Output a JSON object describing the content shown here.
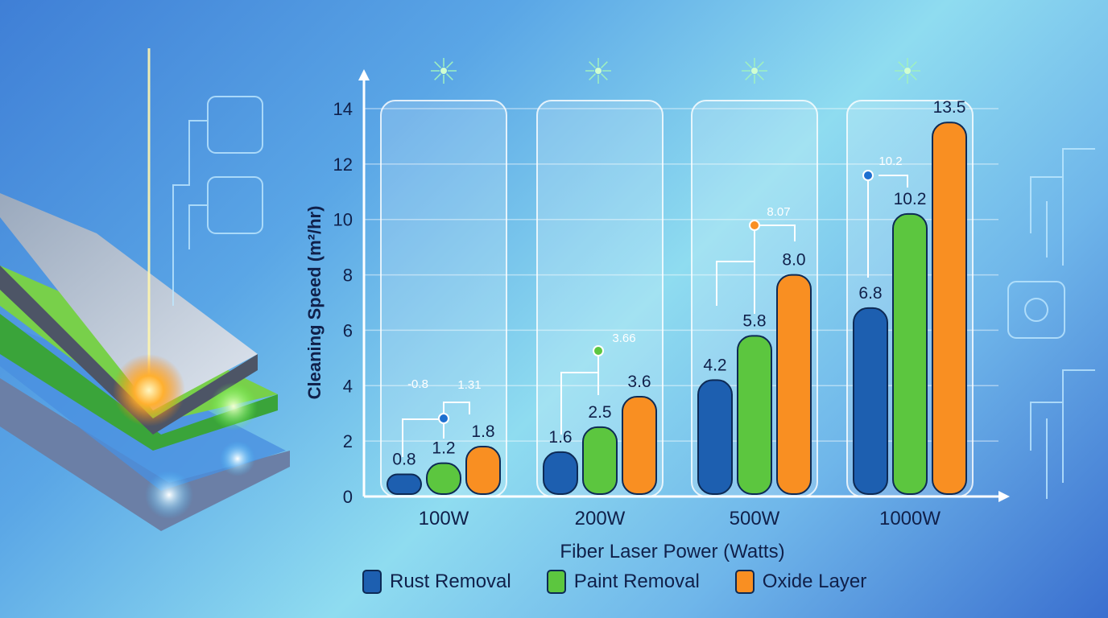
{
  "chart_data": {
    "type": "bar",
    "title": "",
    "xlabel": "Fiber Laser Power (Watts)",
    "ylabel": "Cleaning Speed (m²/hr)",
    "ylim": [
      0,
      14
    ],
    "yticks": [
      "0",
      "2",
      "4",
      "6",
      "8",
      "10",
      "12",
      "14"
    ],
    "categories": [
      "100W",
      "200W",
      "500W",
      "1000W"
    ],
    "series": [
      {
        "name": "Rust Removal",
        "values": [
          0.8,
          1.6,
          4.2,
          6.8
        ],
        "labels": [
          "0.8",
          "1.6",
          "4.2",
          "6.8"
        ],
        "color": "#1d5fb0"
      },
      {
        "name": "Paint Removal",
        "values": [
          1.2,
          2.5,
          5.8,
          10.2
        ],
        "labels": [
          "1.2",
          "2.5",
          "5.8",
          "10.2"
        ],
        "color": "#5cc63f"
      },
      {
        "name": "Oxide Layer",
        "values": [
          1.8,
          3.6,
          8.0,
          13.5
        ],
        "labels": [
          "1.8",
          "3.6",
          "8.0",
          "13.5"
        ],
        "color": "#f98f22"
      }
    ],
    "annotations": [
      {
        "category": "100W",
        "texts": [
          "-0.8",
          "1.31"
        ],
        "marker_color": "#1d6fd0"
      },
      {
        "category": "200W",
        "texts": [
          "3.66"
        ],
        "marker_color": "#5cc63f"
      },
      {
        "category": "500W",
        "texts": [
          "8.07"
        ],
        "marker_color": "#f98f22"
      },
      {
        "category": "1000W",
        "texts": [
          "10.2"
        ],
        "marker_color": "#1d6fd0"
      }
    ],
    "grid": true,
    "legend_position": "bottom"
  }
}
